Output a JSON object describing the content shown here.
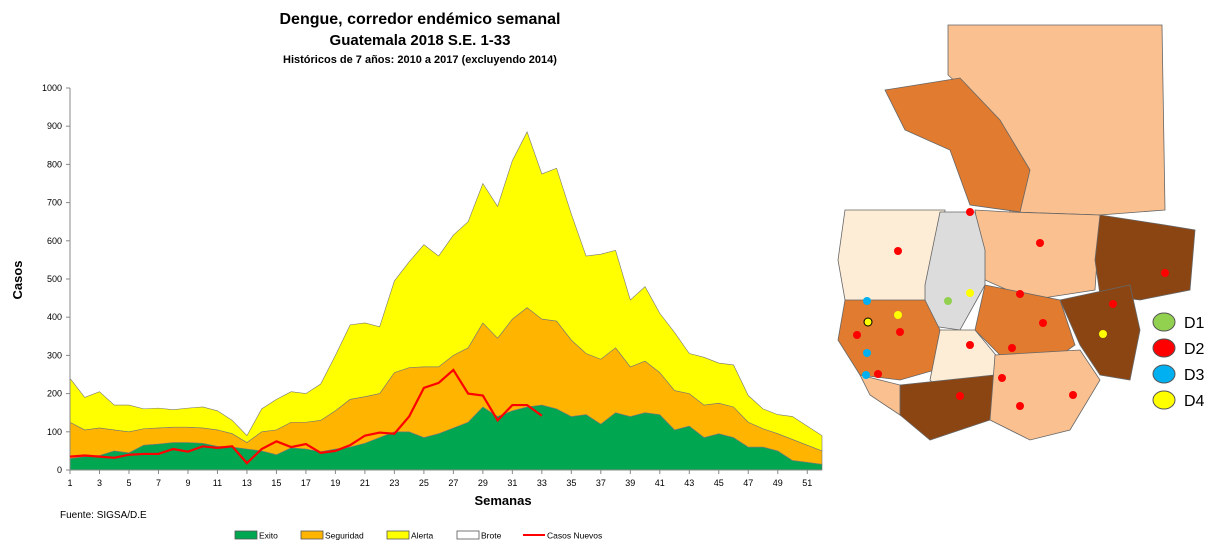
{
  "chart_data": {
    "type": "stacked_area",
    "title": "Dengue, corredor endémico semanal",
    "subtitle": "Guatemala 2018 S.E. 1-33",
    "subtitle2": "Históricos de 7 años: 2010 a 2017 (excluyendo 2014)",
    "ylabel": "Casos",
    "xlabel": "Semanas",
    "source": "Fuente: SIGSA/D.E",
    "x": [
      1,
      2,
      3,
      4,
      5,
      6,
      7,
      8,
      9,
      10,
      11,
      12,
      13,
      14,
      15,
      16,
      17,
      18,
      19,
      20,
      21,
      22,
      23,
      24,
      25,
      26,
      27,
      28,
      29,
      30,
      31,
      32,
      33,
      34,
      35,
      36,
      37,
      38,
      39,
      40,
      41,
      42,
      43,
      44,
      45,
      46,
      47,
      48,
      49,
      50,
      51,
      52
    ],
    "xlim": [
      1,
      52
    ],
    "xticks": [
      1,
      3,
      5,
      7,
      9,
      11,
      13,
      15,
      17,
      19,
      21,
      23,
      25,
      27,
      29,
      31,
      33,
      35,
      37,
      39,
      41,
      43,
      45,
      47,
      49,
      51
    ],
    "ylim": [
      0,
      1000
    ],
    "yticks": [
      0,
      100,
      200,
      300,
      400,
      500,
      600,
      700,
      800,
      900,
      1000
    ],
    "series": [
      {
        "name": "Exito",
        "color": "#00a650",
        "values": [
          30,
          35,
          38,
          50,
          45,
          65,
          68,
          72,
          72,
          70,
          62,
          60,
          55,
          50,
          40,
          58,
          55,
          48,
          55,
          60,
          70,
          85,
          100,
          100,
          85,
          95,
          110,
          125,
          165,
          140,
          155,
          165,
          170,
          160,
          140,
          145,
          120,
          150,
          140,
          150,
          145,
          105,
          115,
          85,
          95,
          85,
          60,
          60,
          50,
          25,
          20,
          15
        ]
      },
      {
        "name": "Seguridad",
        "color": "#ffb400",
        "values": [
          95,
          70,
          72,
          55,
          55,
          43,
          42,
          40,
          40,
          40,
          43,
          35,
          17,
          50,
          65,
          67,
          70,
          82,
          100,
          125,
          122,
          115,
          155,
          168,
          185,
          175,
          190,
          195,
          220,
          205,
          240,
          260,
          225,
          230,
          200,
          160,
          170,
          170,
          130,
          135,
          110,
          103,
          85,
          85,
          80,
          80,
          65,
          48,
          45,
          55,
          45,
          35
        ]
      },
      {
        "name": "Alerta",
        "color": "#ffff00",
        "values": [
          115,
          85,
          95,
          65,
          70,
          52,
          52,
          46,
          50,
          55,
          50,
          35,
          18,
          60,
          80,
          80,
          75,
          95,
          145,
          195,
          193,
          175,
          240,
          277,
          320,
          290,
          315,
          330,
          365,
          345,
          415,
          460,
          380,
          400,
          330,
          255,
          275,
          255,
          175,
          195,
          155,
          152,
          105,
          125,
          105,
          110,
          70,
          52,
          50,
          60,
          50,
          40
        ]
      }
    ],
    "brote": {
      "name": "Brote",
      "color": "#ffffff"
    },
    "line": {
      "name": "Casos Nuevos",
      "color": "#ff0000",
      "values": [
        35,
        38,
        35,
        32,
        40,
        42,
        42,
        55,
        48,
        62,
        58,
        62,
        18,
        55,
        75,
        60,
        68,
        45,
        50,
        65,
        90,
        98,
        95,
        140,
        215,
        228,
        262,
        200,
        195,
        130,
        170,
        170,
        142,
        null,
        null,
        null,
        null,
        null,
        null,
        null,
        null,
        null,
        null,
        null,
        null,
        null,
        null,
        null,
        null,
        null,
        null,
        null
      ]
    }
  },
  "map": {
    "legend": [
      {
        "label": "D1",
        "color": "#92d050"
      },
      {
        "label": "D2",
        "color": "#ff0000"
      },
      {
        "label": "D3",
        "color": "#00b0f0"
      },
      {
        "label": "D4",
        "color": "#ffff00"
      }
    ]
  }
}
